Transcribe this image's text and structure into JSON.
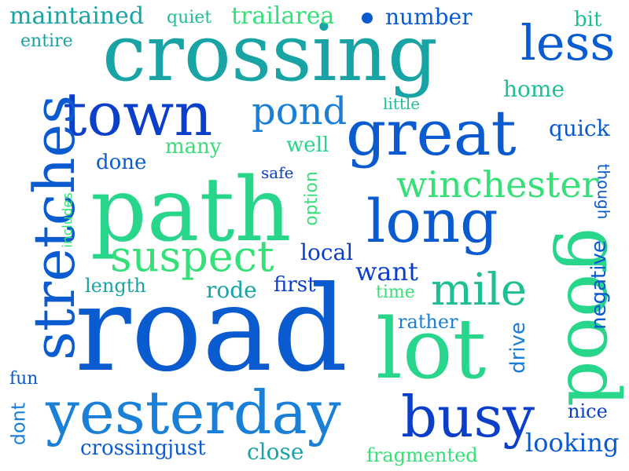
{
  "colors": {
    "background": "#ffffff",
    "deep_blue": "#0b3fc9",
    "royal_blue": "#0a5bd0",
    "azure": "#1a7fd6",
    "teal": "#18a3a4",
    "sea_green": "#1fbf95",
    "mint": "#27d68a",
    "bright_green": "#36e078"
  },
  "words": {
    "road": "road",
    "crossing": "crossing",
    "path": "path",
    "great": "great",
    "good": "good",
    "lot": "lot",
    "town": "town",
    "yesterday": "yesterday",
    "stretches": "stretches",
    "long": "long",
    "busy": "busy",
    "less": "less",
    "suspect": "suspect",
    "winchester": "winchester",
    "mile": "mile",
    "pond": "pond",
    "maintained": "maintained",
    "trailarea": "trailarea",
    "number": "number",
    "quiet": "quiet",
    "bit": "bit",
    "entire": "entire",
    "home": "home",
    "little": "little",
    "quick": "quick",
    "many": "many",
    "well": "well",
    "done": "done",
    "safe": "safe",
    "option": "option",
    "includes": "includes",
    "though": "though",
    "negative": "negative",
    "local": "local",
    "want": "want",
    "first": "first",
    "time": "time",
    "length": "length",
    "rode": "rode",
    "rather": "rather",
    "drive": "drive",
    "fun": "fun",
    "dont": "dont",
    "nice": "nice",
    "crossingjust": "crossingjust",
    "close": "close",
    "fragmented": "fragmented",
    "looking": "looking"
  }
}
